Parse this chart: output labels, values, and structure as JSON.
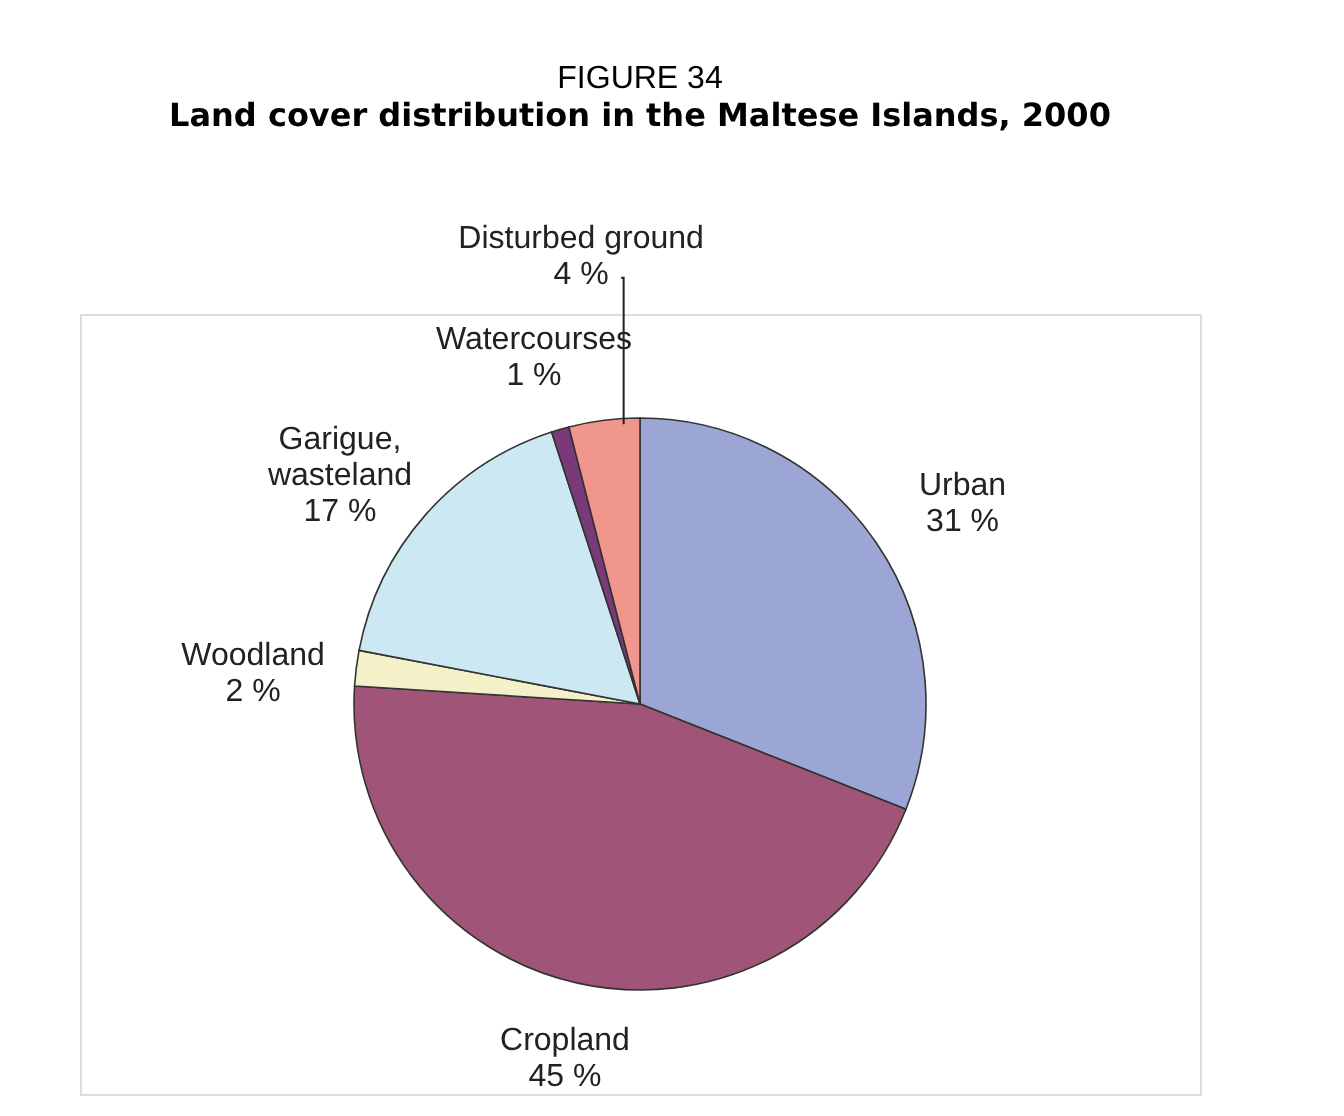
{
  "chart_data": {
    "type": "pie",
    "title": "FIGURE 34",
    "subtitle": "Land cover distribution in the Maltese Islands, 2000",
    "categories": [
      "Urban",
      "Cropland",
      "Woodland",
      "Garigue,\nwasteland",
      "Watercourses",
      "Disturbed ground"
    ],
    "values": [
      31,
      45,
      2,
      17,
      1,
      4
    ],
    "value_labels": [
      "31 %",
      "45 %",
      "2 %",
      "17 %",
      "1 %",
      "4 %"
    ],
    "colors": [
      "#9ba6d4",
      "#a05578",
      "#f4f1c8",
      "#cce8f2",
      "#7a3a7a",
      "#f0968c"
    ],
    "legend": false
  }
}
